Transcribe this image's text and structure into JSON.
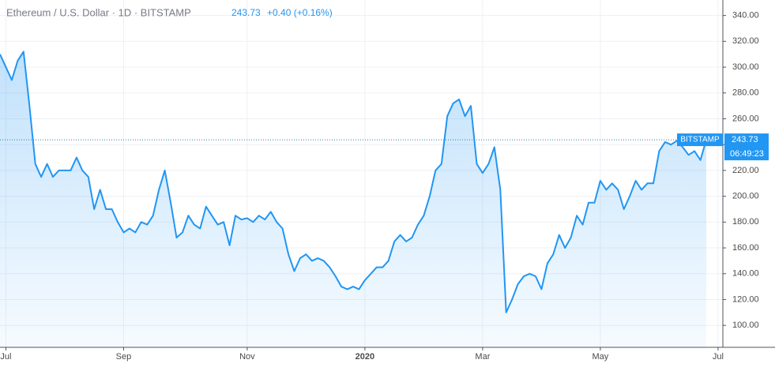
{
  "chart_data": {
    "type": "line",
    "title": "Ethereum / U.S. Dollar · 1D · BITSTAMP",
    "change": "+0.40 (+0.16%)",
    "exchange_label": "BITSTAMP",
    "countdown": "06:49:23",
    "color": "#2196f3",
    "grid": true,
    "categories": [
      null,
      "Jul",
      null,
      null,
      null,
      null,
      null,
      null,
      null,
      null,
      null,
      null,
      null,
      null,
      null,
      null,
      null,
      null,
      null,
      null,
      null,
      "Sep",
      null,
      null,
      null,
      null,
      null,
      null,
      null,
      null,
      null,
      null,
      null,
      null,
      null,
      null,
      null,
      null,
      null,
      null,
      null,
      null,
      "Nov",
      null,
      null,
      null,
      null,
      null,
      null,
      null,
      null,
      null,
      null,
      null,
      null,
      null,
      null,
      null,
      null,
      null,
      null,
      null,
      "2020",
      null,
      null,
      null,
      null,
      null,
      null,
      null,
      null,
      null,
      null,
      null,
      null,
      null,
      null,
      null,
      null,
      null,
      null,
      null,
      "Mar",
      null,
      null,
      null,
      null,
      null,
      null,
      null,
      null,
      null,
      null,
      null,
      null,
      null,
      null,
      null,
      null,
      null,
      null,
      null,
      "May",
      null,
      null,
      null,
      null,
      null,
      null,
      null,
      null,
      null,
      null,
      null,
      null,
      null,
      null,
      null,
      null,
      null,
      null,
      null,
      "Jul"
    ],
    "values": [
      310,
      300,
      290,
      305,
      312,
      270,
      225,
      215,
      225,
      215,
      220,
      220,
      220,
      230,
      220,
      215,
      190,
      205,
      190,
      190,
      180,
      172,
      175,
      172,
      180,
      178,
      185,
      205,
      220,
      195,
      168,
      172,
      185,
      178,
      175,
      192,
      185,
      178,
      180,
      162,
      185,
      182,
      183,
      180,
      185,
      182,
      188,
      180,
      175,
      155,
      142,
      152,
      155,
      150,
      152,
      150,
      145,
      138,
      130,
      128,
      130,
      128,
      135,
      140,
      145,
      145,
      150,
      165,
      170,
      165,
      168,
      178,
      185,
      200,
      220,
      225,
      262,
      272,
      275,
      262,
      270,
      225,
      218,
      225,
      238,
      205,
      110,
      120,
      132,
      138,
      140,
      138,
      128,
      148,
      155,
      170,
      160,
      168,
      185,
      178,
      195,
      195,
      212,
      205,
      210,
      205,
      190,
      200,
      212,
      205,
      210,
      210,
      235,
      242,
      240,
      243,
      238,
      232,
      235,
      228,
      243.73,
      null,
      null
    ],
    "ylim": [
      83,
      352
    ],
    "yticks": [
      {
        "value": 100,
        "label": "100.00"
      },
      {
        "value": 120,
        "label": "120.00"
      },
      {
        "value": 140,
        "label": "140.00"
      },
      {
        "value": 160,
        "label": "160.00"
      },
      {
        "value": 180,
        "label": "180.00"
      },
      {
        "value": 200,
        "label": "200.00"
      },
      {
        "value": 220,
        "label": "220.00"
      },
      {
        "value": 240,
        "label": "240.00"
      },
      {
        "value": 260,
        "label": "260.00"
      },
      {
        "value": 280,
        "label": "280.00"
      },
      {
        "value": 300,
        "label": "300.00"
      },
      {
        "value": 320,
        "label": "320.00"
      },
      {
        "value": 340,
        "label": "340.00"
      }
    ]
  }
}
